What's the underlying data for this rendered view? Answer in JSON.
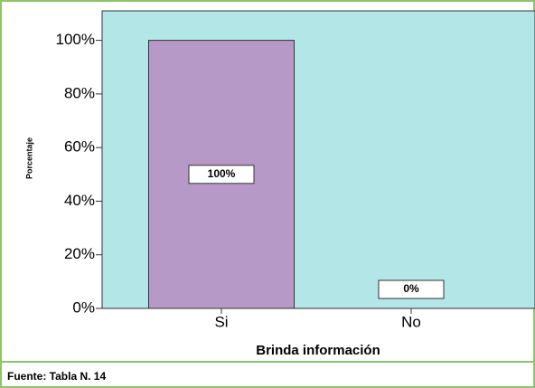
{
  "chart_data": {
    "type": "bar",
    "x_label": "Brinda información",
    "y_label": "Porcentaje",
    "categories": [
      "Si",
      "No"
    ],
    "values": [
      100,
      0
    ],
    "value_labels": [
      "100%",
      "0%"
    ],
    "color": "#b799c8",
    "background": "#b3e6e6",
    "ylim": [
      0,
      111
    ],
    "yticks": [
      {
        "value": 0,
        "label": "0%"
      },
      {
        "value": 20,
        "label": "20%"
      },
      {
        "value": 40,
        "label": "40%"
      },
      {
        "value": 60,
        "label": "60%"
      },
      {
        "value": 80,
        "label": "80%"
      },
      {
        "value": 100,
        "label": "100%"
      }
    ],
    "grid": false
  },
  "source": "Fuente: Tabla N. 14"
}
